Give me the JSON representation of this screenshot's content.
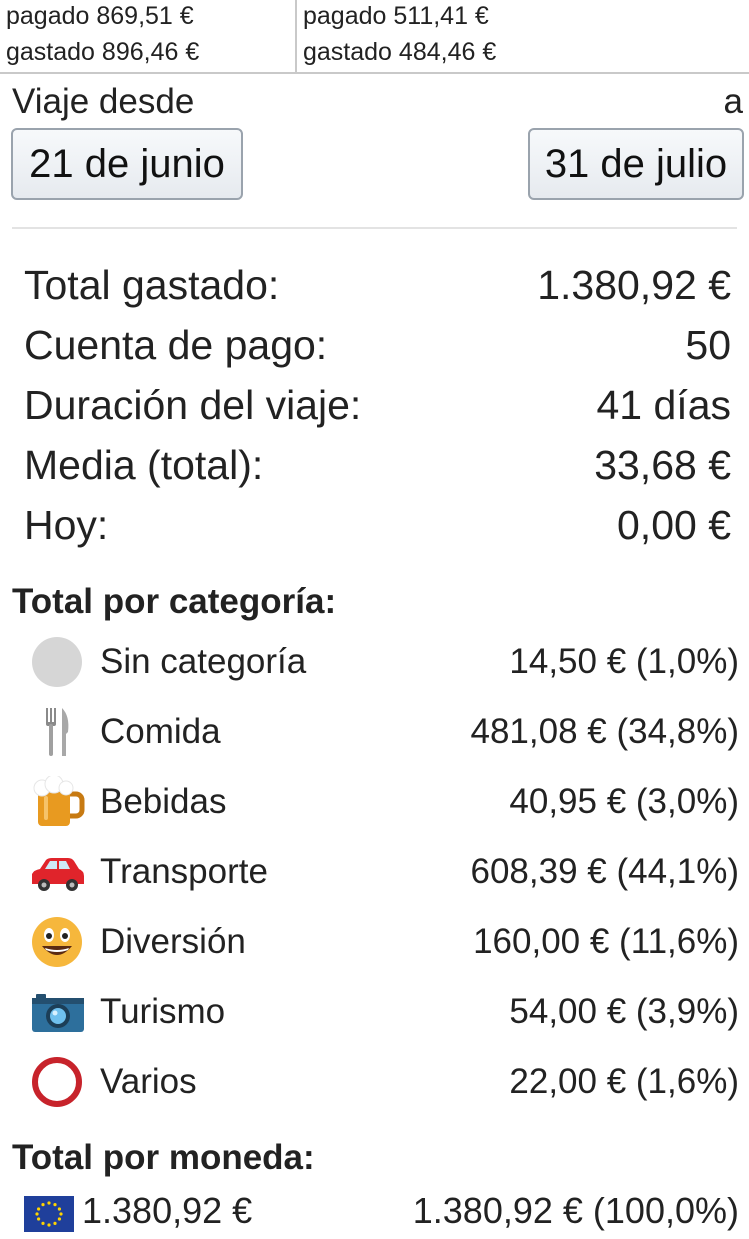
{
  "summary_cells": [
    {
      "paid": "pagado 869,51 €",
      "spent": "gastado 896,46 €"
    },
    {
      "paid": "pagado 511,41 €",
      "spent": "gastado 484,46 €"
    }
  ],
  "trip": {
    "from_label": "Viaje desde",
    "to_label": "a",
    "start_date": "21 de junio",
    "end_date": "31 de julio"
  },
  "stats": [
    {
      "label": "Total gastado:",
      "value": "1.380,92 €"
    },
    {
      "label": "Cuenta de pago:",
      "value": "50"
    },
    {
      "label": "Duración del viaje:",
      "value": "41 días"
    },
    {
      "label": "Media (total):",
      "value": "33,68 €"
    },
    {
      "label": "Hoy:",
      "value": "0,00 €"
    }
  ],
  "category_section_title": "Total por categoría:",
  "categories": [
    {
      "icon": "gray-circle-icon",
      "name": "Sin categoría",
      "value": "14,50 € (1,0%)"
    },
    {
      "icon": "fork-knife-icon",
      "name": "Comida",
      "value": "481,08 € (34,8%)"
    },
    {
      "icon": "beer-mug-icon",
      "name": "Bebidas",
      "value": "40,95 € (3,0%)"
    },
    {
      "icon": "car-icon",
      "name": "Transporte",
      "value": "608,39 € (44,1%)"
    },
    {
      "icon": "smiley-face-icon",
      "name": "Diversión",
      "value": "160,00 € (11,6%)"
    },
    {
      "icon": "camera-icon",
      "name": "Turismo",
      "value": "54,00 € (3,9%)"
    },
    {
      "icon": "red-ring-icon",
      "name": "Varios",
      "value": "22,00 € (1,6%)"
    }
  ],
  "currency_section_title": "Total por moneda:",
  "currency": {
    "icon": "eu-flag-icon",
    "amount": "1.380,92 €",
    "converted": "1.380,92 € (100,0%)"
  },
  "colors": {
    "car": "#e0242b",
    "beer": "#e89a20",
    "smiley": "#f6b73c",
    "camera": "#2d6f9c",
    "ring": "#c7232b",
    "eu_flag": "#1f3f9b"
  }
}
